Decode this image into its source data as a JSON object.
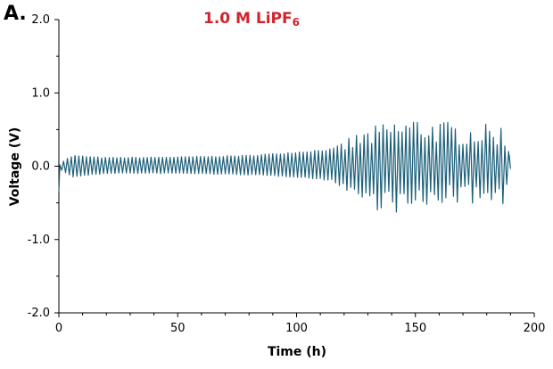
{
  "panel_label": "A.",
  "chart_data": {
    "type": "line",
    "title": "1.0 M LiPF",
    "title_subscript": "6",
    "xlabel": "Time (h)",
    "ylabel": "Voltage (V)",
    "xlim": [
      0,
      200
    ],
    "ylim": [
      -2.0,
      2.0
    ],
    "xticks": [
      0,
      50,
      100,
      150,
      200
    ],
    "yticks": [
      -2.0,
      -1.0,
      0.0,
      1.0,
      2.0
    ],
    "xtick_labels": [
      "0",
      "50",
      "100",
      "150",
      "200"
    ],
    "ytick_labels": [
      "-2.0",
      "-1.0",
      "0.0",
      "1.0",
      "2.0"
    ],
    "grid": false,
    "legend": "none",
    "series": [
      {
        "color": "#1c5f7a",
        "cycle_period_h": 1.6,
        "amplitude_profile": {
          "t": [
            0,
            1,
            3,
            6,
            20,
            50,
            80,
            100,
            115,
            122,
            130,
            140,
            150,
            160,
            170,
            180,
            187,
            189.5
          ],
          "positive": [
            0.0,
            0.05,
            0.1,
            0.15,
            0.12,
            0.13,
            0.15,
            0.2,
            0.24,
            0.35,
            0.45,
            0.55,
            0.6,
            0.55,
            0.5,
            0.5,
            0.5,
            0.2
          ],
          "negative": [
            -0.35,
            -0.05,
            -0.1,
            -0.15,
            -0.1,
            -0.1,
            -0.12,
            -0.15,
            -0.2,
            -0.35,
            -0.5,
            -0.55,
            -0.6,
            -0.45,
            -0.45,
            -0.45,
            -0.45,
            -0.05
          ]
        }
      }
    ]
  }
}
